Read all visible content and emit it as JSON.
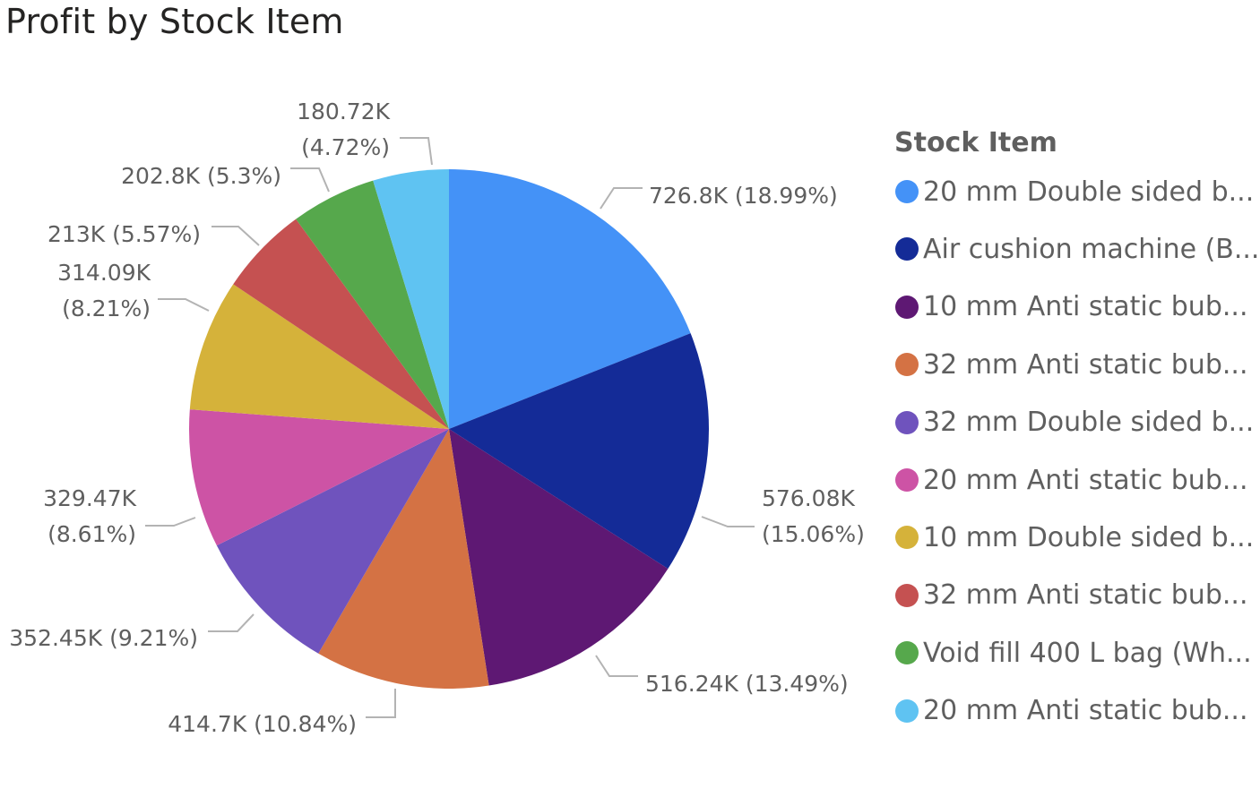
{
  "chart_data": {
    "type": "pie",
    "title": "Profit by Stock Item",
    "legend_title": "Stock Item",
    "legend_position": "right",
    "slices": [
      {
        "label": "20 mm Double sided b...",
        "value": 726.8,
        "display": "726.8K (18.99%)",
        "percent": 18.99,
        "color": "#4492f7"
      },
      {
        "label": "Air cushion machine (B...",
        "value": 576.08,
        "display": "576.08K (15.06%)",
        "percent": 15.06,
        "color": "#142b97"
      },
      {
        "label": "10 mm Anti static bub...",
        "value": 516.24,
        "display": "516.24K (13.49%)",
        "percent": 13.49,
        "color": "#5e1873"
      },
      {
        "label": "32 mm Anti static bub...",
        "value": 414.7,
        "display": "414.7K (10.84%)",
        "percent": 10.84,
        "color": "#d47244"
      },
      {
        "label": "32 mm Double sided b...",
        "value": 352.45,
        "display": "352.45K (9.21%)",
        "percent": 9.21,
        "color": "#6f53bd"
      },
      {
        "label": "20 mm Anti static bub...",
        "value": 329.47,
        "display": "329.47K (8.61%)",
        "percent": 8.61,
        "color": "#cd53a5"
      },
      {
        "label": "10 mm Double sided b...",
        "value": 314.09,
        "display": "314.09K (8.21%)",
        "percent": 8.21,
        "color": "#d5b23a"
      },
      {
        "label": "32 mm Anti static bub...",
        "value": 213,
        "display": "213K (5.57%)",
        "percent": 5.57,
        "color": "#c55151"
      },
      {
        "label": "Void fill 400 L bag (Wh...",
        "value": 202.8,
        "display": "202.8K (5.3%)",
        "percent": 5.3,
        "color": "#56a84c"
      },
      {
        "label": "20 mm Anti static bub...",
        "value": 180.72,
        "display": "180.72K (4.72%)",
        "percent": 4.72,
        "color": "#5fc3f2"
      }
    ]
  }
}
